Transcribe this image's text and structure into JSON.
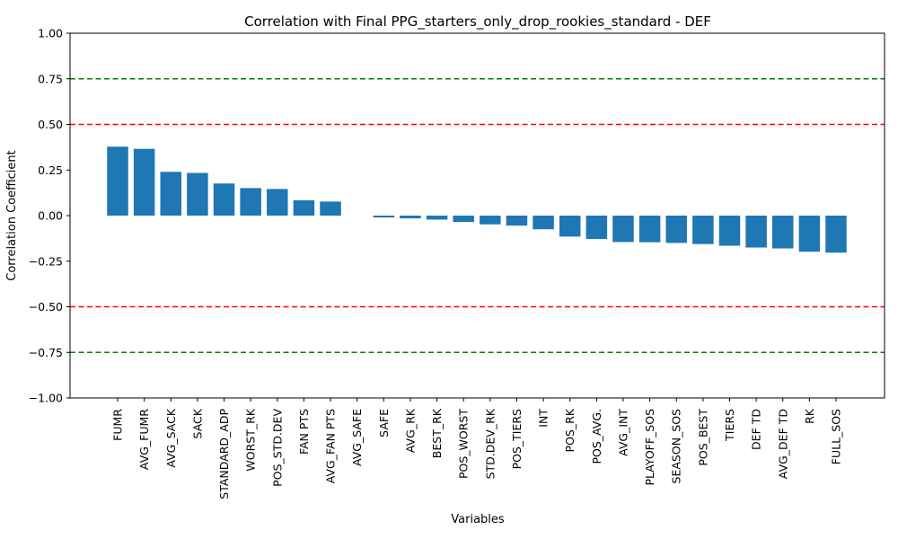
{
  "chart_data": {
    "type": "bar",
    "title": "Correlation with Final PPG_starters_only_drop_rookies_standard - DEF",
    "xlabel": "Variables",
    "ylabel": "Correlation Coefficient",
    "ylim": [
      -1.0,
      1.0
    ],
    "yticks": [
      "−1.00",
      "−0.75",
      "−0.50",
      "−0.25",
      "0.00",
      "0.25",
      "0.50",
      "0.75",
      "1.00"
    ],
    "categories": [
      "FUMR",
      "AVG_FUMR",
      "AVG_SACK",
      "SACK",
      "STANDARD_ADP",
      "WORST_RK",
      "POS_STD.DEV",
      "FAN PTS",
      "AVG_FAN PTS",
      "AVG_SAFE",
      "SAFE",
      "AVG_RK",
      "BEST_RK",
      "POS_WORST",
      "STD.DEV_RK",
      "POS_TIERS",
      "INT",
      "POS_RK",
      "POS_AVG.",
      "AVG_INT",
      "PLAYOFF_SOS",
      "SEASON_SOS",
      "POS_BEST",
      "TIERS",
      "DEF TD",
      "AVG_DEF TD",
      "RK",
      "FULL_SOS"
    ],
    "values": [
      0.378,
      0.366,
      0.24,
      0.234,
      0.176,
      0.151,
      0.146,
      0.084,
      0.077,
      0.0,
      -0.01,
      -0.015,
      -0.022,
      -0.035,
      -0.048,
      -0.055,
      -0.075,
      -0.115,
      -0.128,
      -0.145,
      -0.146,
      -0.15,
      -0.156,
      -0.165,
      -0.175,
      -0.18,
      -0.198,
      -0.203
    ],
    "bar_color": "#1f77b4",
    "reference_lines": [
      {
        "value": 0.75,
        "color": "#008000"
      },
      {
        "value": -0.75,
        "color": "#008000"
      },
      {
        "value": 0.5,
        "color": "#ff0000"
      },
      {
        "value": -0.5,
        "color": "#ff0000"
      }
    ],
    "grid": false,
    "legend": "none"
  }
}
